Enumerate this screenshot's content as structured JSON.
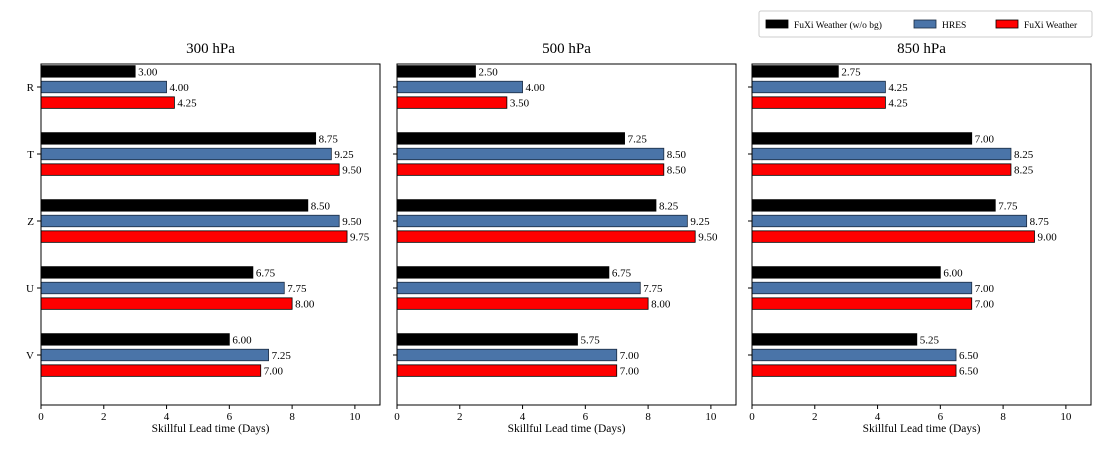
{
  "chart_data": {
    "type": "bar",
    "orientation": "horizontal",
    "categories": [
      "R",
      "T",
      "Z",
      "U",
      "V"
    ],
    "xlabel": "Skillful Lead time (Days)",
    "xlim": [
      0,
      10.8
    ],
    "xticks": [
      0,
      2,
      4,
      6,
      8,
      10
    ],
    "grid": false,
    "legend": {
      "placement": "top-right",
      "entries": [
        {
          "name": "FuXi Weather (w/o bg)",
          "color": "#000000"
        },
        {
          "name": "HRES",
          "color": "#4a74a8"
        },
        {
          "name": "FuXi Weather",
          "color": "#ff0000"
        }
      ]
    },
    "panels": [
      {
        "title": "300 hPa",
        "series": [
          {
            "name": "FuXi Weather (w/o bg)",
            "values": [
              3.0,
              8.75,
              8.5,
              6.75,
              6.0
            ]
          },
          {
            "name": "HRES",
            "values": [
              4.0,
              9.25,
              9.5,
              7.75,
              7.25
            ]
          },
          {
            "name": "FuXi Weather",
            "values": [
              4.25,
              9.5,
              9.75,
              8.0,
              7.0
            ]
          }
        ]
      },
      {
        "title": "500 hPa",
        "series": [
          {
            "name": "FuXi Weather (w/o bg)",
            "values": [
              2.5,
              7.25,
              8.25,
              6.75,
              5.75
            ]
          },
          {
            "name": "HRES",
            "values": [
              4.0,
              8.5,
              9.25,
              7.75,
              7.0
            ]
          },
          {
            "name": "FuXi Weather",
            "values": [
              3.5,
              8.5,
              9.5,
              8.0,
              7.0
            ]
          }
        ]
      },
      {
        "title": "850 hPa",
        "series": [
          {
            "name": "FuXi Weather (w/o bg)",
            "values": [
              2.75,
              7.0,
              7.75,
              6.0,
              5.25
            ]
          },
          {
            "name": "HRES",
            "values": [
              4.25,
              8.25,
              8.75,
              7.0,
              6.5
            ]
          },
          {
            "name": "FuXi Weather",
            "values": [
              4.25,
              8.25,
              9.0,
              7.0,
              6.5
            ]
          }
        ]
      }
    ]
  }
}
